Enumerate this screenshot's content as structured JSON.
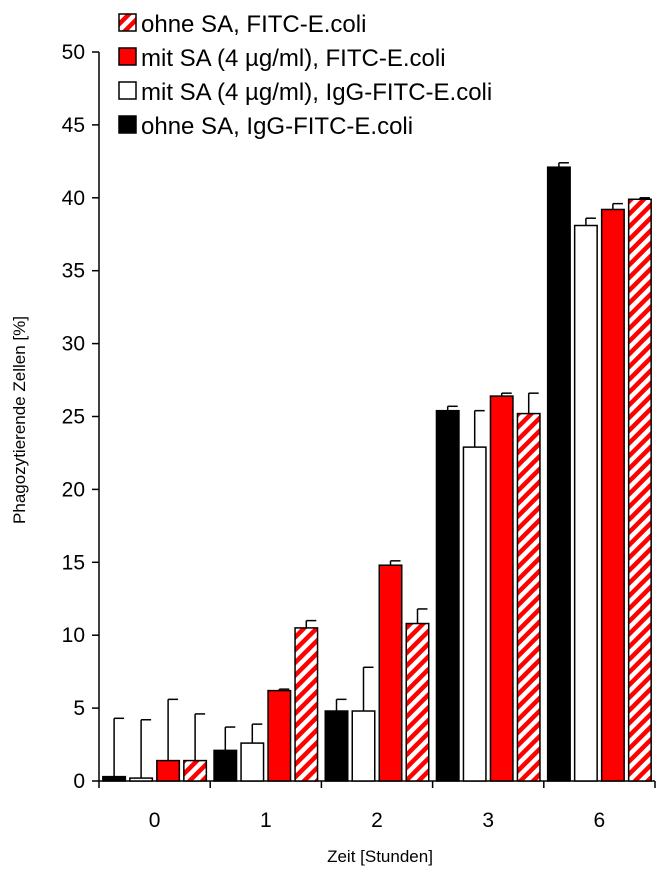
{
  "chart_data": {
    "type": "bar",
    "xlabel": "Zeit [Stunden]",
    "ylabel": "Phagozytierende Zellen [%]",
    "ylim": [
      0,
      50
    ],
    "yticks": [
      "0",
      "5",
      "10",
      "15",
      "20",
      "25",
      "30",
      "35",
      "40",
      "45",
      "50"
    ],
    "categories": [
      "0",
      "1",
      "2",
      "3",
      "6"
    ],
    "legend_position": "top-left",
    "grid": false,
    "series": [
      {
        "name": "ohne SA, IgG-FITC-E.coli",
        "fill": "solid-black",
        "color": "#000000",
        "values": [
          0.3,
          2.1,
          4.8,
          25.4,
          42.1
        ],
        "errors": [
          4.0,
          1.6,
          0.8,
          0.3,
          0.3
        ]
      },
      {
        "name": "mit SA (4 µg/ml),  IgG-FITC-E.coli",
        "fill": "white",
        "color": "#ffffff",
        "values": [
          0.2,
          2.6,
          4.8,
          22.9,
          38.1
        ],
        "errors": [
          4.0,
          1.3,
          3.0,
          2.5,
          0.5
        ]
      },
      {
        "name": "mit SA (4 µg/ml),  FITC-E.coli",
        "fill": "solid-red",
        "color": "#ff0000",
        "values": [
          1.4,
          6.2,
          14.8,
          26.4,
          39.2
        ],
        "errors": [
          4.2,
          0.1,
          0.3,
          0.2,
          0.4
        ]
      },
      {
        "name": "ohne SA, FITC-E.coli",
        "fill": "red-white-diagonal-stripes",
        "color": "#ff0000",
        "values": [
          1.4,
          10.5,
          10.8,
          25.2,
          39.9
        ],
        "errors": [
          3.2,
          0.5,
          1.0,
          1.4,
          0.1
        ]
      }
    ],
    "legend_order": [
      3,
      2,
      1,
      0
    ]
  }
}
